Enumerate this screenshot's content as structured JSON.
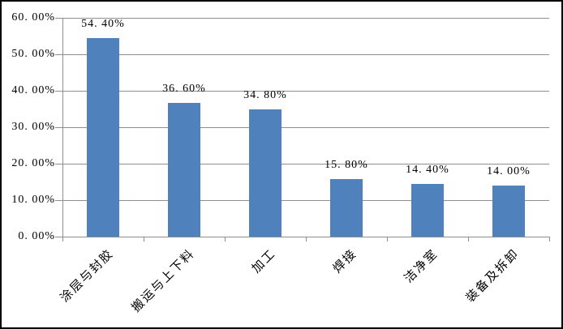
{
  "chart_data": {
    "type": "bar",
    "title": "",
    "categories": [
      "涂层与封胶",
      "搬运与上下料",
      "加工",
      "焊接",
      "洁净室",
      "装备及拆卸"
    ],
    "values": [
      54.4,
      36.6,
      34.8,
      15.8,
      14.4,
      14.0
    ],
    "data_labels": [
      "54. 40%",
      "36. 60%",
      "34. 80%",
      "15. 80%",
      "14. 40%",
      "14. 00%"
    ],
    "xlabel": "",
    "ylabel": "",
    "y_axis": {
      "range": [
        0,
        60
      ],
      "ticks": [
        {
          "value": 60,
          "label": "60. 00%"
        },
        {
          "value": 50,
          "label": "50. 00%"
        },
        {
          "value": 40,
          "label": "40. 00%"
        },
        {
          "value": 30,
          "label": "30. 00%"
        },
        {
          "value": 20,
          "label": "20. 00%"
        },
        {
          "value": 10,
          "label": "10. 00%"
        },
        {
          "value": 0,
          "label": "0. 00%"
        }
      ]
    },
    "grid": true,
    "legend": false,
    "colors": {
      "bar": "#4F81BD",
      "gridline": "#8E8E8E",
      "axis": "#8E8E8E",
      "text": "#000000",
      "background": "#FFFFFF",
      "border": "#000000"
    }
  }
}
